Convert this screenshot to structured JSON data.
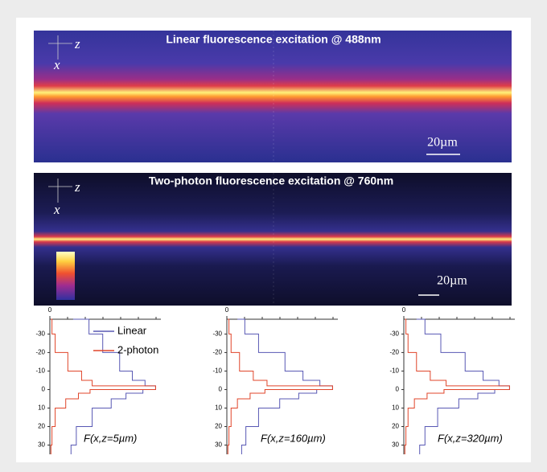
{
  "panels": [
    {
      "title": "Linear fluorescence excitation @ 488nm",
      "axis_z": "z",
      "axis_x": "x",
      "scale": "20µm"
    },
    {
      "title": "Two-photon fluorescence excitation @ 760nm",
      "axis_z": "z",
      "axis_x": "x",
      "scale": "20µm"
    }
  ],
  "chart_data": [
    {
      "type": "line",
      "annotation": "F(x,z=5µm)",
      "legend": true,
      "x": [
        -38,
        -30,
        -20,
        -10,
        -5,
        -2,
        0,
        2,
        5,
        10,
        20,
        30,
        35
      ],
      "xlim": [
        0,
        1.05
      ],
      "xticks": [
        0
      ],
      "ylim": [
        -38,
        35
      ],
      "yticks": [
        -30,
        -20,
        -10,
        0,
        10,
        20,
        30
      ],
      "series": [
        {
          "name": "Linear",
          "color": "#5858b4",
          "values": [
            0.22,
            0.37,
            0.5,
            0.66,
            0.78,
            0.9,
            1,
            0.88,
            0.72,
            0.58,
            0.4,
            0.25,
            0.2
          ]
        },
        {
          "name": "2-photon",
          "color": "#e0452a",
          "values": [
            0.01,
            0.02,
            0.05,
            0.17,
            0.3,
            0.4,
            1,
            0.38,
            0.27,
            0.15,
            0.05,
            0.02,
            0.01
          ]
        }
      ]
    },
    {
      "type": "line",
      "annotation": "F(x,z=160µm)",
      "legend": false,
      "x": [
        -38,
        -30,
        -20,
        -10,
        -5,
        -2,
        0,
        2,
        5,
        10,
        20,
        30,
        35
      ],
      "xlim": [
        0,
        1.05
      ],
      "xticks": [
        0
      ],
      "ylim": [
        -38,
        35
      ],
      "yticks": [
        -30,
        -20,
        -10,
        0,
        10,
        20,
        30
      ],
      "series": [
        {
          "name": "Linear",
          "color": "#5858b4",
          "values": [
            0.1,
            0.17,
            0.3,
            0.55,
            0.72,
            0.88,
            1,
            0.85,
            0.68,
            0.5,
            0.3,
            0.18,
            0.14
          ]
        },
        {
          "name": "2-photon",
          "color": "#e0452a",
          "values": [
            0.01,
            0.02,
            0.04,
            0.12,
            0.25,
            0.38,
            1,
            0.36,
            0.22,
            0.1,
            0.04,
            0.02,
            0.01
          ]
        }
      ]
    },
    {
      "type": "line",
      "annotation": "F(x,z=320µm)",
      "legend": false,
      "x": [
        -38,
        -30,
        -20,
        -10,
        -5,
        -2,
        0,
        2,
        5,
        10,
        20,
        30,
        35
      ],
      "xlim": [
        0,
        1.05
      ],
      "xticks": [
        0
      ],
      "ylim": [
        -38,
        35
      ],
      "yticks": [
        -30,
        -20,
        -10,
        0,
        10,
        20,
        30
      ],
      "series": [
        {
          "name": "Linear",
          "color": "#5858b4",
          "values": [
            0.12,
            0.2,
            0.35,
            0.58,
            0.75,
            0.9,
            1,
            0.86,
            0.7,
            0.52,
            0.32,
            0.2,
            0.15
          ]
        },
        {
          "name": "2-photon",
          "color": "#e0452a",
          "values": [
            0.01,
            0.02,
            0.04,
            0.12,
            0.25,
            0.4,
            1,
            0.38,
            0.22,
            0.1,
            0.04,
            0.02,
            0.01
          ]
        }
      ]
    }
  ]
}
